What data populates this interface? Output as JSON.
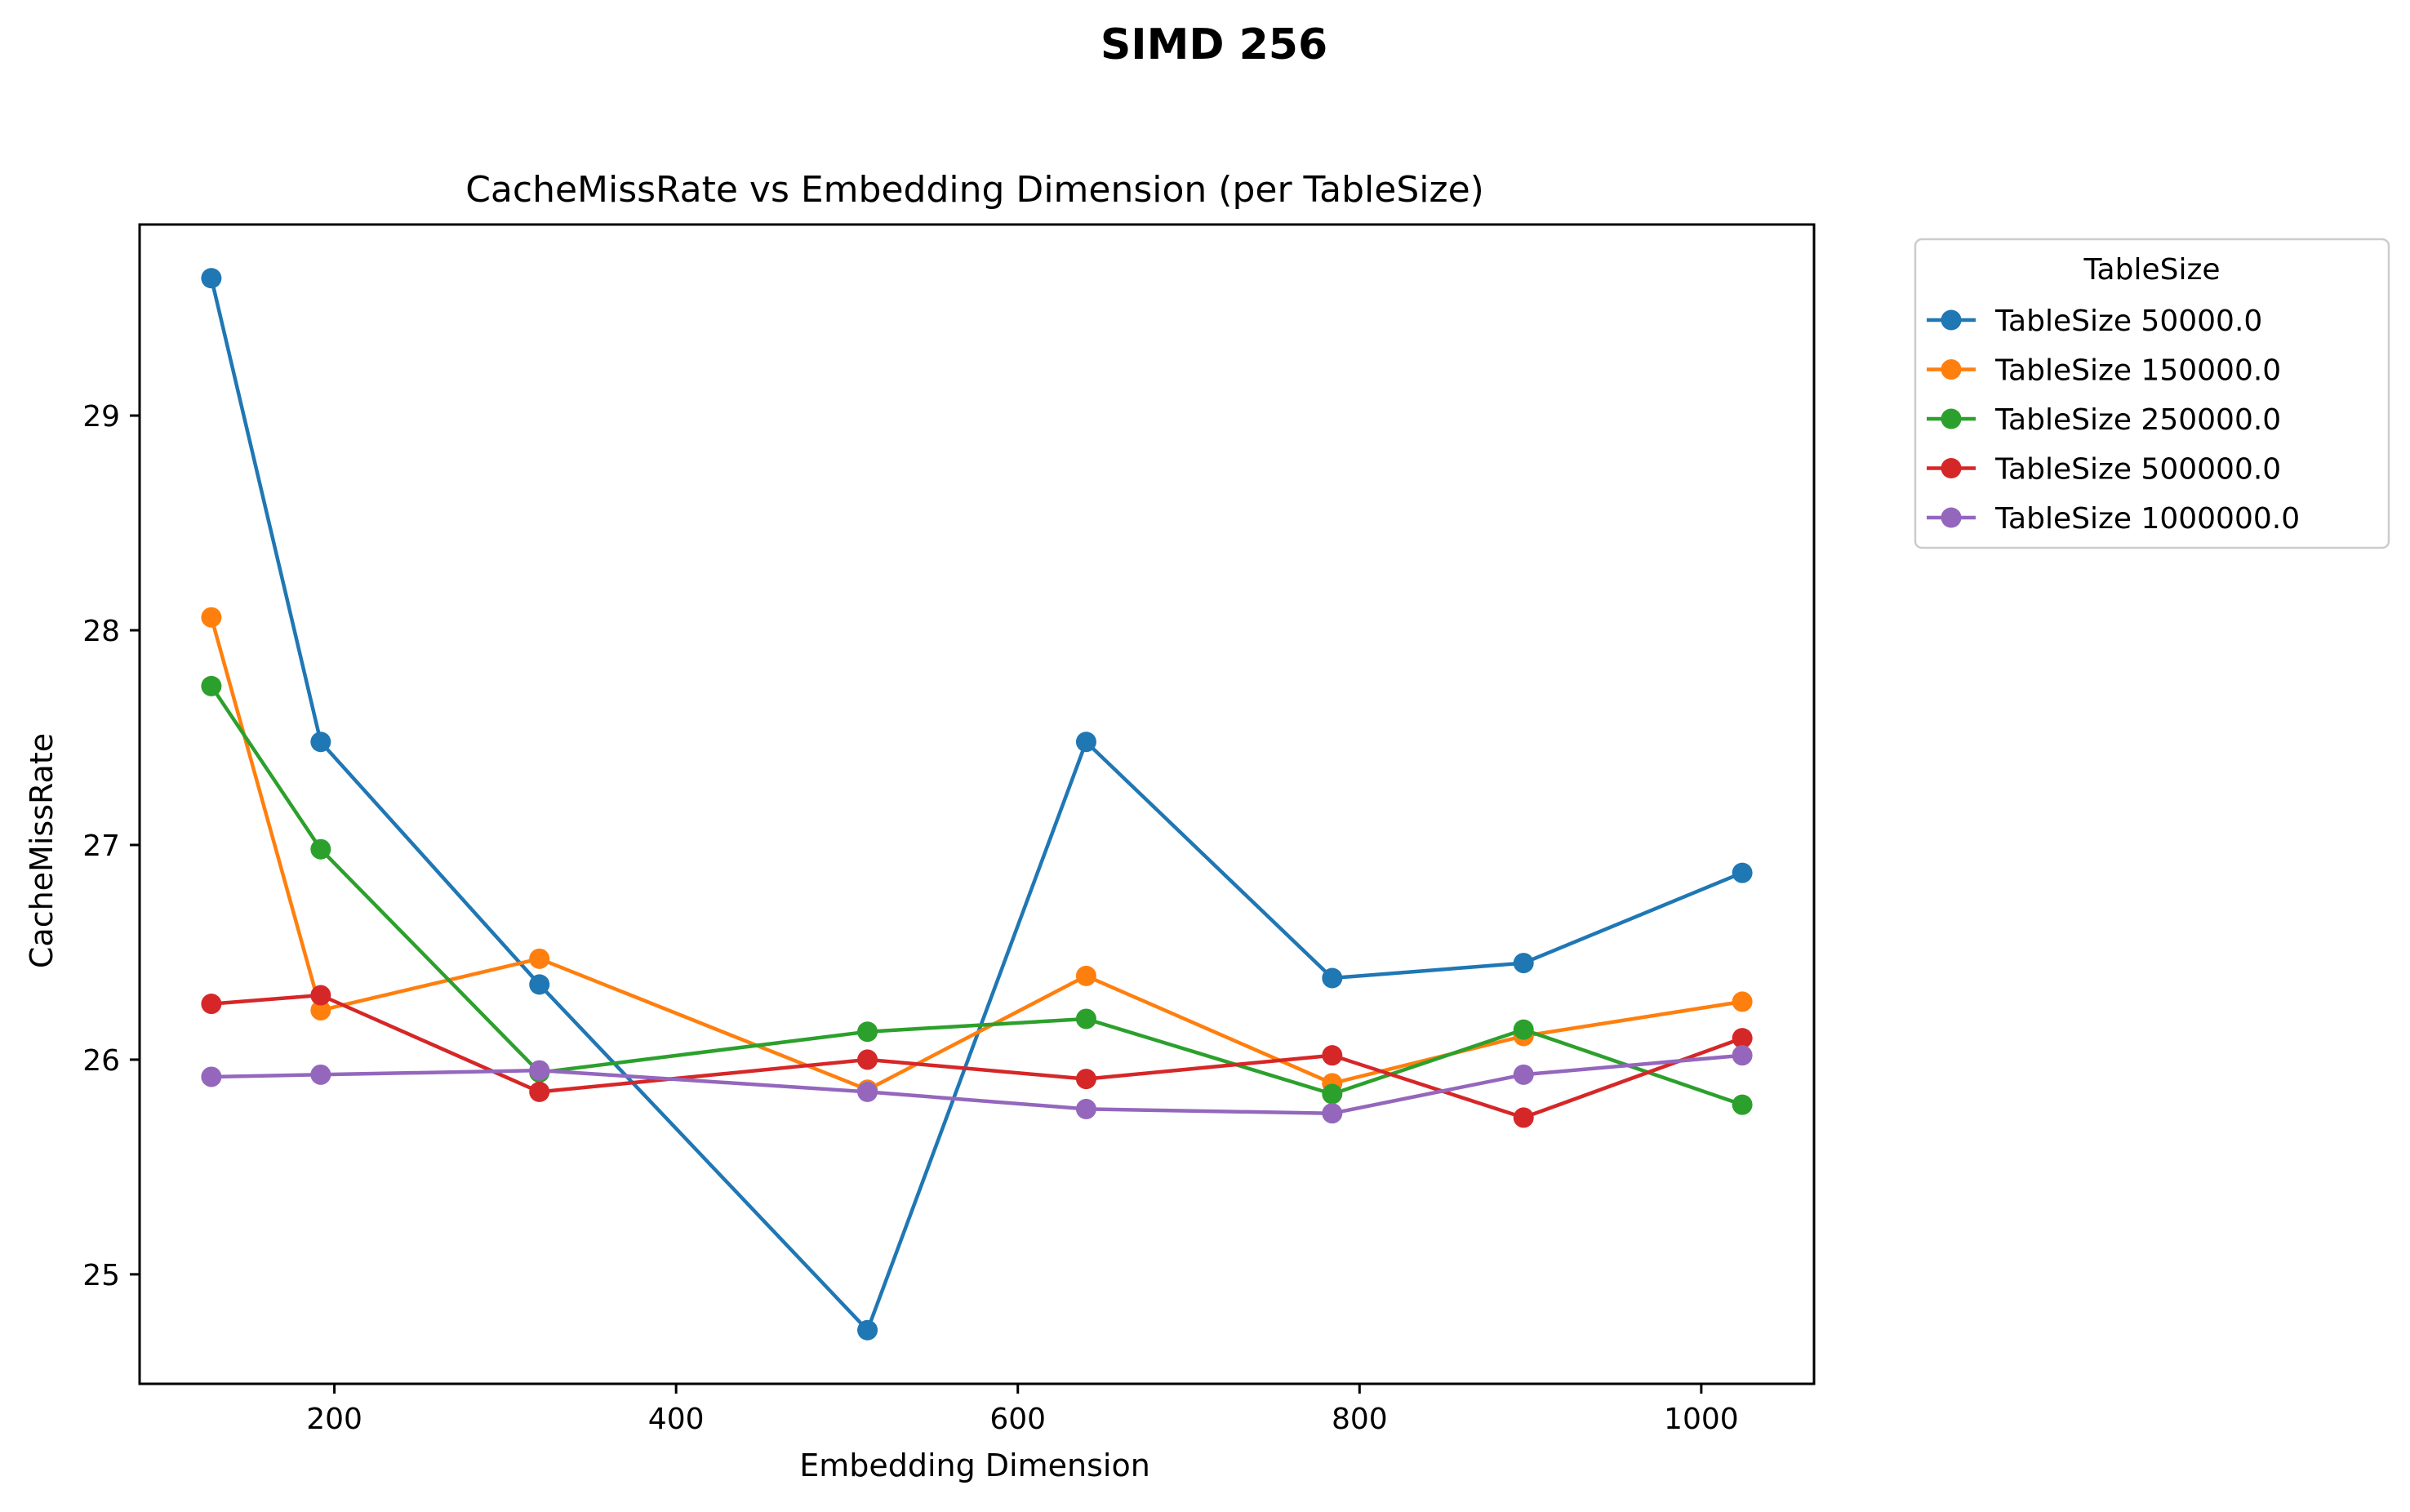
{
  "suptitle": "SIMD 256",
  "chart_data": {
    "type": "line",
    "title": "CacheMissRate vs Embedding Dimension (per TableSize)",
    "xlabel": "Embedding Dimension",
    "ylabel": "CacheMissRate",
    "xlim": [
      86,
      1066
    ],
    "ylim": [
      24.49,
      29.89
    ],
    "xticks": [
      200,
      400,
      600,
      800,
      1000
    ],
    "yticks": [
      25,
      26,
      27,
      28,
      29
    ],
    "grid": false,
    "legend": {
      "title": "TableSize",
      "placement": "outside upper right"
    },
    "x": [
      128,
      192,
      320,
      512,
      640,
      784,
      896,
      1024
    ],
    "series": [
      {
        "name": "TableSize 50000.0",
        "color": "#1f77b4",
        "values": [
          29.64,
          27.48,
          26.35,
          24.74,
          27.48,
          26.38,
          26.45,
          26.87
        ]
      },
      {
        "name": "TableSize 150000.0",
        "color": "#ff7f0e",
        "values": [
          28.06,
          26.23,
          26.47,
          25.86,
          26.39,
          25.89,
          26.11,
          26.27
        ]
      },
      {
        "name": "TableSize 250000.0",
        "color": "#2ca02c",
        "values": [
          27.74,
          26.98,
          25.94,
          26.13,
          26.19,
          25.84,
          26.14,
          25.79
        ]
      },
      {
        "name": "TableSize 500000.0",
        "color": "#d62728",
        "values": [
          26.26,
          26.3,
          25.85,
          26.0,
          25.91,
          26.02,
          25.73,
          26.1
        ]
      },
      {
        "name": "TableSize 1000000.0",
        "color": "#9467bd",
        "values": [
          25.92,
          25.93,
          25.95,
          25.85,
          25.77,
          25.75,
          25.93,
          26.02
        ]
      }
    ]
  }
}
